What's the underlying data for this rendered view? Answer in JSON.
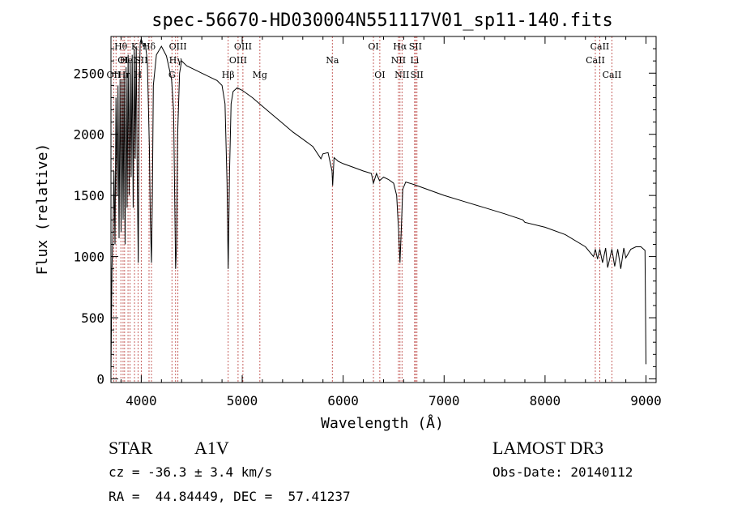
{
  "chart_data": {
    "type": "line",
    "title": "spec-56670-HD030004N551117V01_sp11-140.fits",
    "xlabel": "Wavelength (Å)",
    "ylabel": "Flux (relative)",
    "xlim": [
      3700,
      9100
    ],
    "ylim": [
      -30,
      2800
    ],
    "x_ticks": [
      4000,
      5000,
      6000,
      7000,
      8000,
      9000
    ],
    "y_ticks": [
      0,
      500,
      1000,
      1500,
      2000,
      2500
    ],
    "line_color": "#000000",
    "marker_color": "#c0504d",
    "series": [
      {
        "name": "spectrum",
        "x": [
          3700,
          3710,
          3720,
          3730,
          3740,
          3750,
          3760,
          3770,
          3780,
          3790,
          3800,
          3810,
          3820,
          3830,
          3840,
          3850,
          3860,
          3870,
          3880,
          3890,
          3900,
          3910,
          3920,
          3930,
          3940,
          3950,
          3960,
          3970,
          3980,
          3990,
          4000,
          4020,
          4040,
          4060,
          4080,
          4090,
          4101,
          4110,
          4120,
          4150,
          4200,
          4250,
          4300,
          4320,
          4340,
          4350,
          4360,
          4380,
          4400,
          4450,
          4500,
          4550,
          4600,
          4700,
          4750,
          4800,
          4830,
          4850,
          4861,
          4875,
          4890,
          4910,
          4950,
          5000,
          5100,
          5200,
          5300,
          5400,
          5500,
          5600,
          5700,
          5780,
          5800,
          5850,
          5890,
          5896,
          5910,
          5950,
          6000,
          6100,
          6200,
          6280,
          6300,
          6330,
          6360,
          6400,
          6450,
          6500,
          6530,
          6550,
          6563,
          6575,
          6590,
          6620,
          6700,
          6800,
          6900,
          7000,
          7200,
          7400,
          7600,
          7780,
          7800,
          8000,
          8200,
          8400,
          8450,
          8480,
          8498,
          8520,
          8542,
          8570,
          8600,
          8620,
          8662,
          8690,
          8720,
          8750,
          8780,
          8800,
          8850,
          8900,
          8950,
          8990,
          9000
        ],
        "y": [
          50,
          900,
          1200,
          1700,
          1100,
          2300,
          1500,
          2400,
          1150,
          2450,
          1200,
          2450,
          1300,
          2500,
          1100,
          2550,
          1400,
          2650,
          1500,
          2600,
          1650,
          2650,
          1400,
          2700,
          1800,
          2720,
          1700,
          950,
          2400,
          2750,
          2780,
          2720,
          2740,
          2600,
          1900,
          1300,
          950,
          1500,
          2400,
          2650,
          2720,
          2640,
          2450,
          2200,
          900,
          1100,
          2000,
          2500,
          2600,
          2560,
          2540,
          2520,
          2500,
          2460,
          2440,
          2400,
          2250,
          1600,
          900,
          1700,
          2250,
          2350,
          2380,
          2360,
          2300,
          2230,
          2160,
          2090,
          2020,
          1960,
          1900,
          1800,
          1840,
          1850,
          1700,
          1580,
          1810,
          1780,
          1760,
          1730,
          1700,
          1680,
          1600,
          1680,
          1620,
          1650,
          1630,
          1600,
          1500,
          1200,
          950,
          1200,
          1550,
          1610,
          1590,
          1560,
          1530,
          1500,
          1450,
          1400,
          1350,
          1300,
          1280,
          1240,
          1180,
          1080,
          1030,
          1000,
          1060,
          980,
          1060,
          950,
          1070,
          910,
          1060,
          920,
          1060,
          900,
          1070,
          990,
          1060,
          1080,
          1080,
          1050,
          120
        ]
      }
    ],
    "lines": [
      {
        "wavelength": 3727,
        "label": "OII",
        "row": 3
      },
      {
        "wavelength": 3750,
        "label": "",
        "row": 0
      },
      {
        "wavelength": 3798,
        "label": "Hθ",
        "row": 1
      },
      {
        "wavelength": 3820,
        "label": "OI",
        "row": 2
      },
      {
        "wavelength": 3835,
        "label": "Hη",
        "row": 3
      },
      {
        "wavelength": 3869,
        "label": "HeI",
        "row": 2
      },
      {
        "wavelength": 3889,
        "label": "",
        "row": 0
      },
      {
        "wavelength": 3933,
        "label": "K",
        "row": 1
      },
      {
        "wavelength": 3968,
        "label": "H",
        "row": 3
      },
      {
        "wavelength": 4000,
        "label": "SII",
        "row": 2
      },
      {
        "wavelength": 4077,
        "label": "Hδ",
        "row": 1
      },
      {
        "wavelength": 4101,
        "label": "",
        "row": 0
      },
      {
        "wavelength": 4304,
        "label": "G",
        "row": 3
      },
      {
        "wavelength": 4340,
        "label": "Hγ",
        "row": 2
      },
      {
        "wavelength": 4363,
        "label": "OIII",
        "row": 1
      },
      {
        "wavelength": 4861,
        "label": "Hβ",
        "row": 3
      },
      {
        "wavelength": 4959,
        "label": "OIII",
        "row": 2
      },
      {
        "wavelength": 5007,
        "label": "OIII",
        "row": 1
      },
      {
        "wavelength": 5175,
        "label": "Mg",
        "row": 3
      },
      {
        "wavelength": 5893,
        "label": "Na",
        "row": 2
      },
      {
        "wavelength": 6300,
        "label": "OI",
        "row": 1
      },
      {
        "wavelength": 6363,
        "label": "OI",
        "row": 3
      },
      {
        "wavelength": 6548,
        "label": "NII",
        "row": 2
      },
      {
        "wavelength": 6563,
        "label": "Hα",
        "row": 1
      },
      {
        "wavelength": 6583,
        "label": "NII",
        "row": 3
      },
      {
        "wavelength": 6708,
        "label": "Li",
        "row": 2
      },
      {
        "wavelength": 6716,
        "label": "SII",
        "row": 1
      },
      {
        "wavelength": 6731,
        "label": "SII",
        "row": 3
      },
      {
        "wavelength": 8498,
        "label": "CaII",
        "row": 2
      },
      {
        "wavelength": 8542,
        "label": "CaII",
        "row": 1
      },
      {
        "wavelength": 8662,
        "label": "CaII",
        "row": 3
      }
    ]
  },
  "info": {
    "object_class": "STAR",
    "subclass": "A1V",
    "survey": "LAMOST DR3",
    "cz": "cz = -36.3 ± 3.4 km/s",
    "obs_date": "Obs-Date: 20140112",
    "coords": "RA =  44.84449, DEC =  57.41237"
  }
}
